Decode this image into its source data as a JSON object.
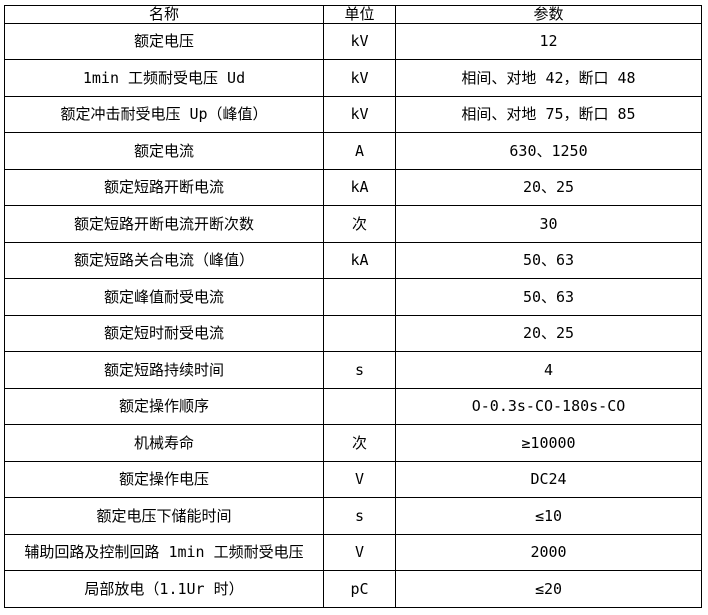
{
  "colors": {
    "border": "#000000",
    "text": "#000000",
    "background": "#ffffff"
  },
  "table": {
    "headers": {
      "name": "名称",
      "unit": "单位",
      "value": "参数"
    },
    "rows": [
      {
        "name": "额定电压",
        "unit": "kV",
        "value": "12"
      },
      {
        "name": "1min 工频耐受电压 Ud",
        "unit": "kV",
        "value": "相间、对地 42，断口 48"
      },
      {
        "name": "额定冲击耐受电压 Up（峰值）",
        "unit": "kV",
        "value": "相间、对地 75，断口 85"
      },
      {
        "name": "额定电流",
        "unit": "A",
        "value": "630、1250"
      },
      {
        "name": "额定短路开断电流",
        "unit": "kA",
        "value": "20、25"
      },
      {
        "name": "额定短路开断电流开断次数",
        "unit": "次",
        "value": "30"
      },
      {
        "name": "额定短路关合电流（峰值）",
        "unit": "kA",
        "value": "50、63"
      },
      {
        "name": "额定峰值耐受电流",
        "unit": "",
        "value": "50、63"
      },
      {
        "name": "额定短时耐受电流",
        "unit": "",
        "value": "20、25"
      },
      {
        "name": "额定短路持续时间",
        "unit": "s",
        "value": "4"
      },
      {
        "name": "额定操作顺序",
        "unit": "",
        "value": "O-0.3s-CO-180s-CO"
      },
      {
        "name": "机械寿命",
        "unit": "次",
        "value": "≥10000"
      },
      {
        "name": "额定操作电压",
        "unit": "V",
        "value": "DC24"
      },
      {
        "name": "额定电压下储能时间",
        "unit": "s",
        "value": "≤10"
      },
      {
        "name": "辅助回路及控制回路 1min 工频耐受电压",
        "unit": "V",
        "value": "2000"
      },
      {
        "name": "局部放电（1.1Ur 时）",
        "unit": "pC",
        "value": "≤20"
      }
    ]
  }
}
